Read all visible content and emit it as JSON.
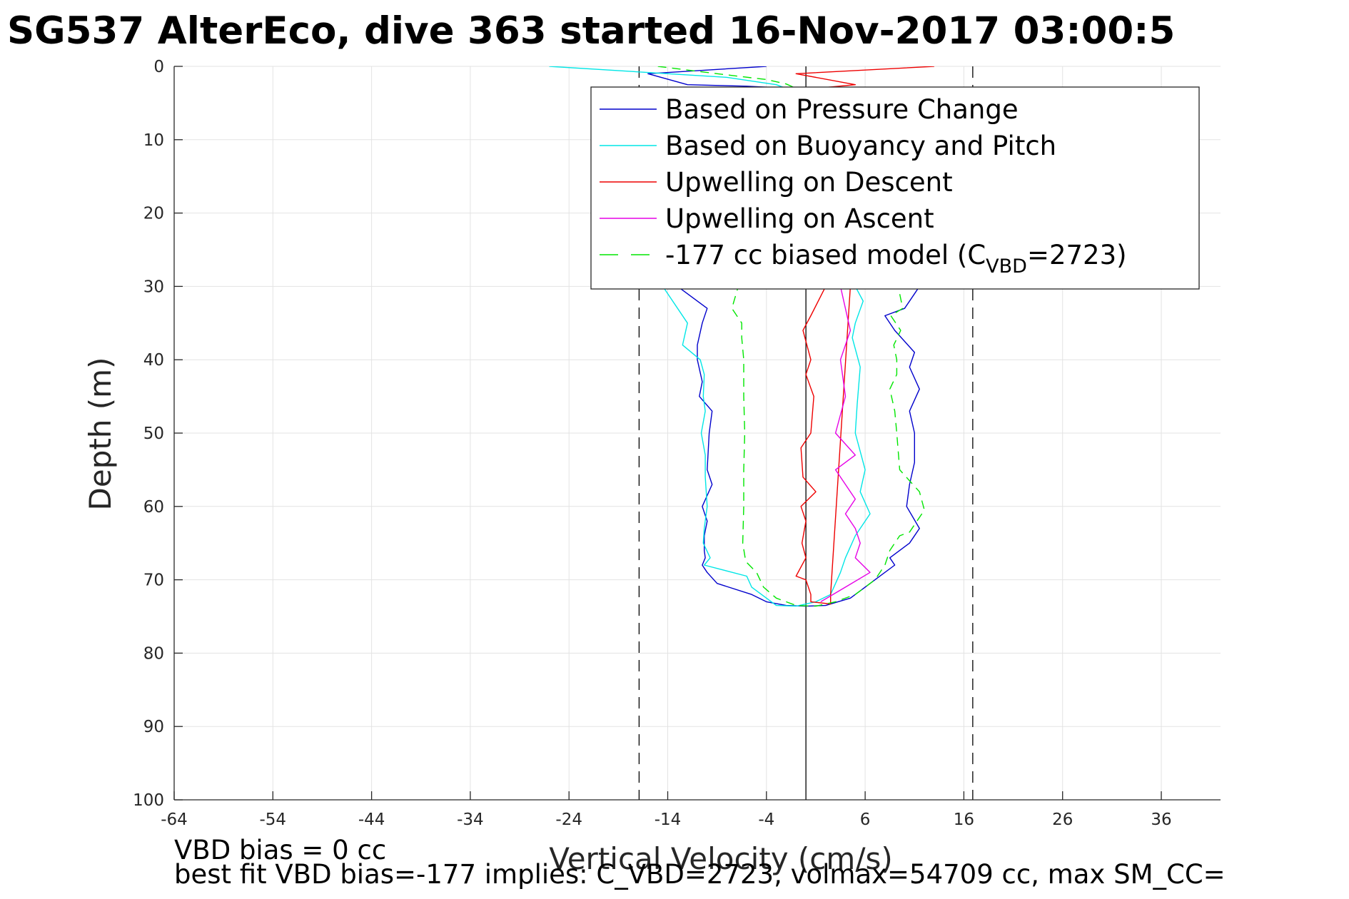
{
  "chart_data": {
    "type": "line",
    "title": "SG537 AlterEco, dive 363 started 16-Nov-2017 03:00:5",
    "xlabel": "Vertical Velocity (cm/s)",
    "ylabel": "Depth (m)",
    "xlim": [
      -64,
      42
    ],
    "ylim": [
      0,
      100
    ],
    "y_reversed": true,
    "grid": true,
    "legend_position": "top-right",
    "xticks": [
      "-64",
      "-54",
      "-44",
      "-34",
      "-24",
      "-14",
      "-4",
      "6",
      "16",
      "26",
      "36"
    ],
    "yticks": [
      "0",
      "10",
      "20",
      "30",
      "40",
      "50",
      "60",
      "70",
      "80",
      "90",
      "100"
    ],
    "reference_lines": [
      {
        "x": 0,
        "style": "solid",
        "color": "#000000"
      },
      {
        "x": -16.9,
        "style": "dashed",
        "color": "#000000"
      },
      {
        "x": 16.9,
        "style": "dashed",
        "color": "#000000"
      }
    ],
    "series": [
      {
        "name": "Based on Pressure Change",
        "color": "#0000cc",
        "dash": "",
        "x": [
          -4,
          -16,
          -12,
          -6,
          -3,
          -1,
          -16,
          -13,
          -10,
          -10.5,
          -11,
          -11,
          -10.5,
          -10.8,
          -9.5,
          -9.8,
          -10.0,
          -9.5,
          -10.5,
          -10,
          -10.3,
          -10.3,
          -10.3,
          -10.2,
          -10.5,
          -10.0,
          -9.0,
          -5.5,
          -4,
          -2,
          0,
          2,
          4.5,
          6,
          7,
          9,
          8.5,
          10.5,
          11.5,
          10.2,
          10.5,
          11,
          11,
          10.5,
          11.5,
          10.5,
          11,
          9,
          8,
          10,
          11,
          11.5,
          12
        ],
        "y": [
          0,
          1,
          2.5,
          2.7,
          2.9,
          3,
          28,
          30,
          33,
          35,
          38,
          40,
          43,
          45,
          47,
          50,
          55,
          57,
          60,
          62,
          64,
          65,
          66,
          67,
          68,
          69,
          70.5,
          72,
          73,
          73.5,
          73.6,
          73.5,
          72.5,
          71,
          70,
          68,
          67,
          65,
          63,
          60,
          57,
          54,
          50,
          47,
          44,
          41,
          39,
          36,
          34,
          33,
          31,
          30,
          29
        ]
      },
      {
        "name": "Based on Buoyancy and Pitch",
        "color": "#00e6e6",
        "dash": "",
        "x": [
          -26,
          -8,
          -3,
          -2,
          -14.5,
          -12,
          -12.5,
          -10.7,
          -10.3,
          -10.4,
          -10.2,
          -10.6,
          -10.2,
          -10.2,
          -10.0,
          -10.3,
          -10.4,
          -9.7,
          -10.3,
          -6,
          -5.5,
          -3,
          -1,
          1,
          2.5,
          3.5,
          4,
          5,
          6.5,
          5.5,
          6,
          5,
          5.2,
          5.5,
          4.7,
          5.0,
          5.8,
          5
        ],
        "y": [
          0,
          1.5,
          2.5,
          3,
          30,
          35,
          38,
          40,
          42,
          45,
          47,
          50,
          53,
          56,
          60,
          63,
          65,
          67,
          68,
          69.5,
          71,
          73.5,
          73.6,
          73,
          72,
          69,
          67,
          64,
          61,
          58,
          55,
          50,
          46,
          41,
          37,
          35,
          32,
          30
        ]
      },
      {
        "name": "Upwelling on Descent",
        "color": "#ee0000",
        "dash": "",
        "x": [
          13,
          -1,
          5,
          1,
          2,
          0.5,
          -0.3,
          0.5,
          0,
          0.8,
          0.5,
          -0.5,
          -0.3,
          1,
          -0.5,
          0,
          -0.4,
          0,
          -1,
          0,
          0.5,
          0.5,
          2.5,
          2.5,
          4.5
        ],
        "y": [
          0,
          1,
          2.5,
          3,
          30,
          34,
          36,
          40,
          42,
          45,
          50,
          52,
          56,
          58,
          60,
          62,
          65,
          67,
          69.5,
          70,
          72,
          73,
          73.3,
          72,
          30
        ]
      },
      {
        "name": "Upwelling on Ascent",
        "color": "#e600e6",
        "dash": "",
        "x": [
          1.5,
          4,
          6.5,
          5,
          5.5,
          5,
          4,
          5,
          4,
          3,
          5,
          3,
          4,
          3.5,
          4.5,
          3.5
        ],
        "y": [
          73,
          71,
          69,
          67,
          65,
          63,
          61,
          59,
          57,
          55,
          53,
          50,
          45,
          40,
          36,
          30
        ]
      },
      {
        "name": "-177 cc biased model (CVBD=2723)",
        "color": "#00e600",
        "dash": "12 8",
        "x": [
          -15,
          -9,
          -4,
          -2,
          -1,
          -7.5,
          -6.5,
          -6.5,
          -6.3,
          -6.3,
          -6.2,
          -6.3,
          -6.3,
          -6.4,
          -6.1,
          -5.0,
          -4.3,
          -3,
          -1,
          1,
          3,
          5,
          7,
          8,
          8.5,
          9.5,
          10.5,
          12,
          11.5,
          9.5,
          9.2,
          9,
          8.5,
          9.2,
          9.2,
          8.9,
          9.6,
          8.6,
          9.8,
          9.5,
          9.2
        ],
        "y": [
          0,
          1,
          1.8,
          2.4,
          3,
          33,
          35,
          37,
          40,
          45,
          50,
          55,
          60,
          65,
          67.5,
          69,
          71,
          72.5,
          73.5,
          73.6,
          73,
          72,
          70,
          68,
          66,
          64,
          63.5,
          60.5,
          58,
          55,
          50,
          47,
          44,
          42,
          40,
          38,
          36,
          34,
          33,
          31,
          29
        ]
      }
    ],
    "legend_entries": [
      {
        "label": "Based on Pressure Change"
      },
      {
        "label": "Based on Buoyancy and Pitch"
      },
      {
        "label": "Upwelling on Descent"
      },
      {
        "label": "Upwelling on Ascent"
      },
      {
        "label_main": "-177 cc biased model (C",
        "label_sub": "VBD",
        "label_tail": "=2723)"
      }
    ]
  },
  "notes": {
    "line1": "VBD bias = 0 cc",
    "line2": "best fit VBD bias=-177 implies: C_VBD=2723, volmax=54709 cc, max SM_CC="
  }
}
